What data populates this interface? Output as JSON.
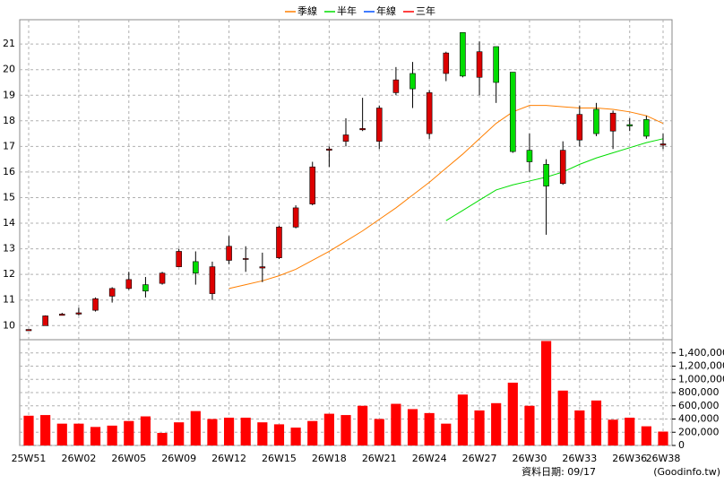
{
  "chart_data": {
    "type": "candlestick",
    "categories": [
      "25W51",
      null,
      null,
      "26W02",
      null,
      null,
      "26W05",
      null,
      null,
      "26W09",
      null,
      null,
      "26W12",
      null,
      null,
      "26W15",
      null,
      null,
      "26W18",
      null,
      null,
      "26W21",
      null,
      null,
      "26W24",
      null,
      null,
      "26W27",
      null,
      null,
      "26W30",
      null,
      null,
      "26W33",
      null,
      null,
      "26W36",
      null,
      "26W38"
    ],
    "open": [
      9.8,
      10.0,
      10.4,
      10.45,
      10.6,
      11.15,
      11.45,
      11.6,
      11.65,
      12.3,
      12.5,
      11.25,
      12.55,
      12.6,
      12.25,
      12.65,
      13.85,
      14.75,
      16.85,
      17.2,
      17.65,
      17.2,
      19.1,
      19.85,
      17.5,
      19.85,
      21.45,
      19.7,
      20.9,
      19.9,
      16.85,
      16.3,
      15.55,
      17.25,
      18.45,
      17.6,
      17.85,
      18.05,
      17.05
    ],
    "high": [
      9.85,
      10.4,
      10.5,
      10.7,
      11.1,
      11.5,
      12.1,
      11.9,
      12.1,
      13.0,
      12.9,
      12.5,
      13.5,
      13.1,
      12.85,
      13.9,
      14.7,
      16.4,
      17.0,
      18.1,
      18.9,
      18.6,
      20.1,
      20.3,
      19.2,
      20.7,
      21.45,
      21.1,
      20.9,
      19.9,
      17.5,
      16.5,
      17.2,
      18.6,
      18.7,
      18.4,
      18.1,
      18.2,
      17.5
    ],
    "low": [
      9.8,
      10.0,
      10.4,
      10.4,
      10.55,
      10.9,
      11.4,
      11.1,
      11.6,
      12.3,
      11.6,
      11.0,
      12.4,
      12.1,
      11.7,
      12.6,
      13.8,
      14.7,
      16.2,
      17.0,
      17.6,
      16.9,
      19.0,
      18.5,
      17.3,
      19.55,
      19.7,
      19.0,
      18.7,
      16.75,
      16.0,
      13.55,
      15.5,
      17.0,
      17.4,
      16.9,
      17.6,
      17.3,
      16.9
    ],
    "close": [
      9.85,
      10.38,
      10.45,
      10.5,
      11.05,
      11.45,
      11.8,
      11.35,
      12.05,
      12.9,
      12.05,
      12.3,
      13.1,
      12.62,
      12.3,
      13.85,
      14.6,
      16.2,
      16.9,
      17.45,
      17.7,
      18.5,
      19.6,
      19.25,
      19.1,
      20.65,
      19.75,
      20.7,
      19.5,
      16.8,
      16.4,
      15.45,
      16.85,
      18.25,
      17.5,
      18.3,
      17.8,
      17.4,
      17.1
    ],
    "up_color": "#dd0000",
    "down_color": "#00dd00",
    "series": [
      {
        "name": "季線",
        "color": "#ff7f00",
        "values": [
          null,
          null,
          null,
          null,
          null,
          null,
          null,
          null,
          null,
          null,
          null,
          null,
          11.45,
          11.6,
          11.75,
          11.95,
          12.2,
          12.55,
          12.9,
          13.3,
          13.7,
          14.15,
          14.6,
          15.1,
          15.6,
          16.15,
          16.7,
          17.3,
          17.9,
          18.35,
          18.6,
          18.6,
          18.55,
          18.5,
          18.5,
          18.45,
          18.35,
          18.2,
          17.9
        ]
      },
      {
        "name": "半年",
        "color": "#00dd00",
        "values": [
          null,
          null,
          null,
          null,
          null,
          null,
          null,
          null,
          null,
          null,
          null,
          null,
          null,
          null,
          null,
          null,
          null,
          null,
          null,
          null,
          null,
          null,
          null,
          null,
          null,
          14.1,
          14.5,
          14.9,
          15.3,
          15.5,
          15.65,
          15.8,
          16.0,
          16.3,
          16.55,
          16.75,
          16.95,
          17.15,
          17.3
        ]
      },
      {
        "name": "年線",
        "color": "#0050ff",
        "values": [
          null,
          null,
          null,
          null,
          null,
          null,
          null,
          null,
          null,
          null,
          null,
          null,
          null,
          null,
          null,
          null,
          null,
          null,
          null,
          null,
          null,
          null,
          null,
          null,
          null,
          null,
          null,
          null,
          null,
          null,
          null,
          null,
          null,
          null,
          null,
          null,
          null,
          null,
          null
        ]
      },
      {
        "name": "三年",
        "color": "#ff0000",
        "values": [
          null,
          null,
          null,
          null,
          null,
          null,
          null,
          null,
          null,
          null,
          null,
          null,
          null,
          null,
          null,
          null,
          null,
          null,
          null,
          null,
          null,
          null,
          null,
          null,
          null,
          null,
          null,
          null,
          null,
          null,
          null,
          null,
          null,
          null,
          null,
          null,
          null,
          null,
          null
        ]
      }
    ],
    "ylim": [
      9.45,
      21.95
    ],
    "yticks": [
      10,
      11,
      12,
      13,
      14,
      15,
      16,
      17,
      18,
      19,
      20,
      21
    ],
    "grid": true,
    "volume": {
      "color": "#ff0000",
      "values": [
        450000,
        460000,
        330000,
        330000,
        280000,
        300000,
        370000,
        440000,
        190000,
        350000,
        520000,
        400000,
        420000,
        420000,
        350000,
        320000,
        270000,
        370000,
        480000,
        460000,
        600000,
        400000,
        630000,
        550000,
        490000,
        330000,
        770000,
        530000,
        640000,
        950000,
        600000,
        1580000,
        830000,
        530000,
        680000,
        390000,
        420000,
        290000,
        210000
      ],
      "ylim": [
        0,
        1600000
      ],
      "yticks": [
        0,
        {
          "value": 200000,
          "label": "200,000"
        },
        {
          "value": 400000,
          "label": "400,000"
        },
        {
          "value": 600000,
          "label": "600,000"
        },
        {
          "value": 800000,
          "label": "800,000"
        },
        {
          "value": 1000000,
          "label": "1,000,000"
        },
        {
          "value": 1200000,
          "label": "1,200,000"
        },
        {
          "value": 1400000,
          "label": "1,400,000"
        }
      ]
    },
    "footer": {
      "date": "資料日期: 09/17",
      "source": "(Goodinfo.tw)"
    }
  }
}
